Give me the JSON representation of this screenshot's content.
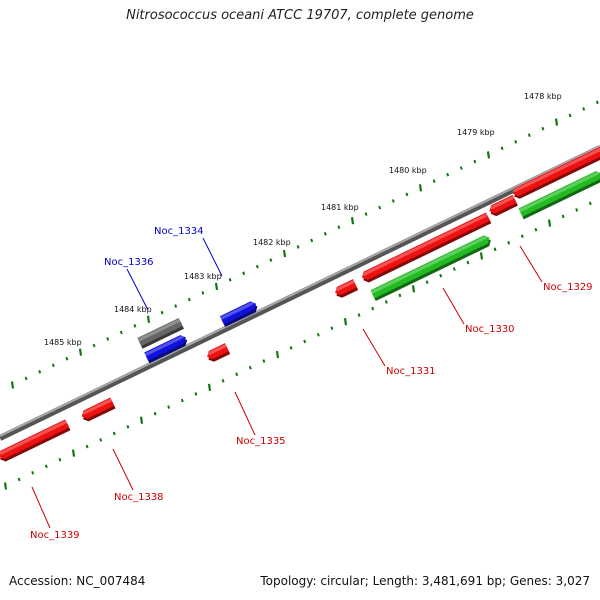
{
  "title": "Nitrosococcus oceani ATCC 19707, complete genome",
  "footer": {
    "accession": "Accession: NC_007484",
    "summary": "Topology: circular; Length: 3,481,691 bp; Genes: 3,027"
  },
  "colors": {
    "backbone": "#808080",
    "forward_gene": "#22bb22",
    "reverse_gene": "#ee1111",
    "blue_gene": "#1111dd",
    "gray_gene": "#666666",
    "tick": "#117711",
    "label_red": "#cc0000",
    "label_blue": "#0000cc"
  },
  "tick_labels": [
    "1478 kbp",
    "1479 kbp",
    "1480 kbp",
    "1481 kbp",
    "1482 kbp",
    "1483 kbp",
    "1484 kbp",
    "1485 kbp"
  ],
  "genes": [
    {
      "name": "Noc_1329",
      "color": "red"
    },
    {
      "name": "Noc_1330",
      "color": "red"
    },
    {
      "name": "Noc_1331",
      "color": "red"
    },
    {
      "name": "Noc_1334",
      "color": "blue"
    },
    {
      "name": "Noc_1335",
      "color": "red"
    },
    {
      "name": "Noc_1336",
      "color": "blue"
    },
    {
      "name": "Noc_1338",
      "color": "red"
    },
    {
      "name": "Noc_1339",
      "color": "red"
    }
  ]
}
